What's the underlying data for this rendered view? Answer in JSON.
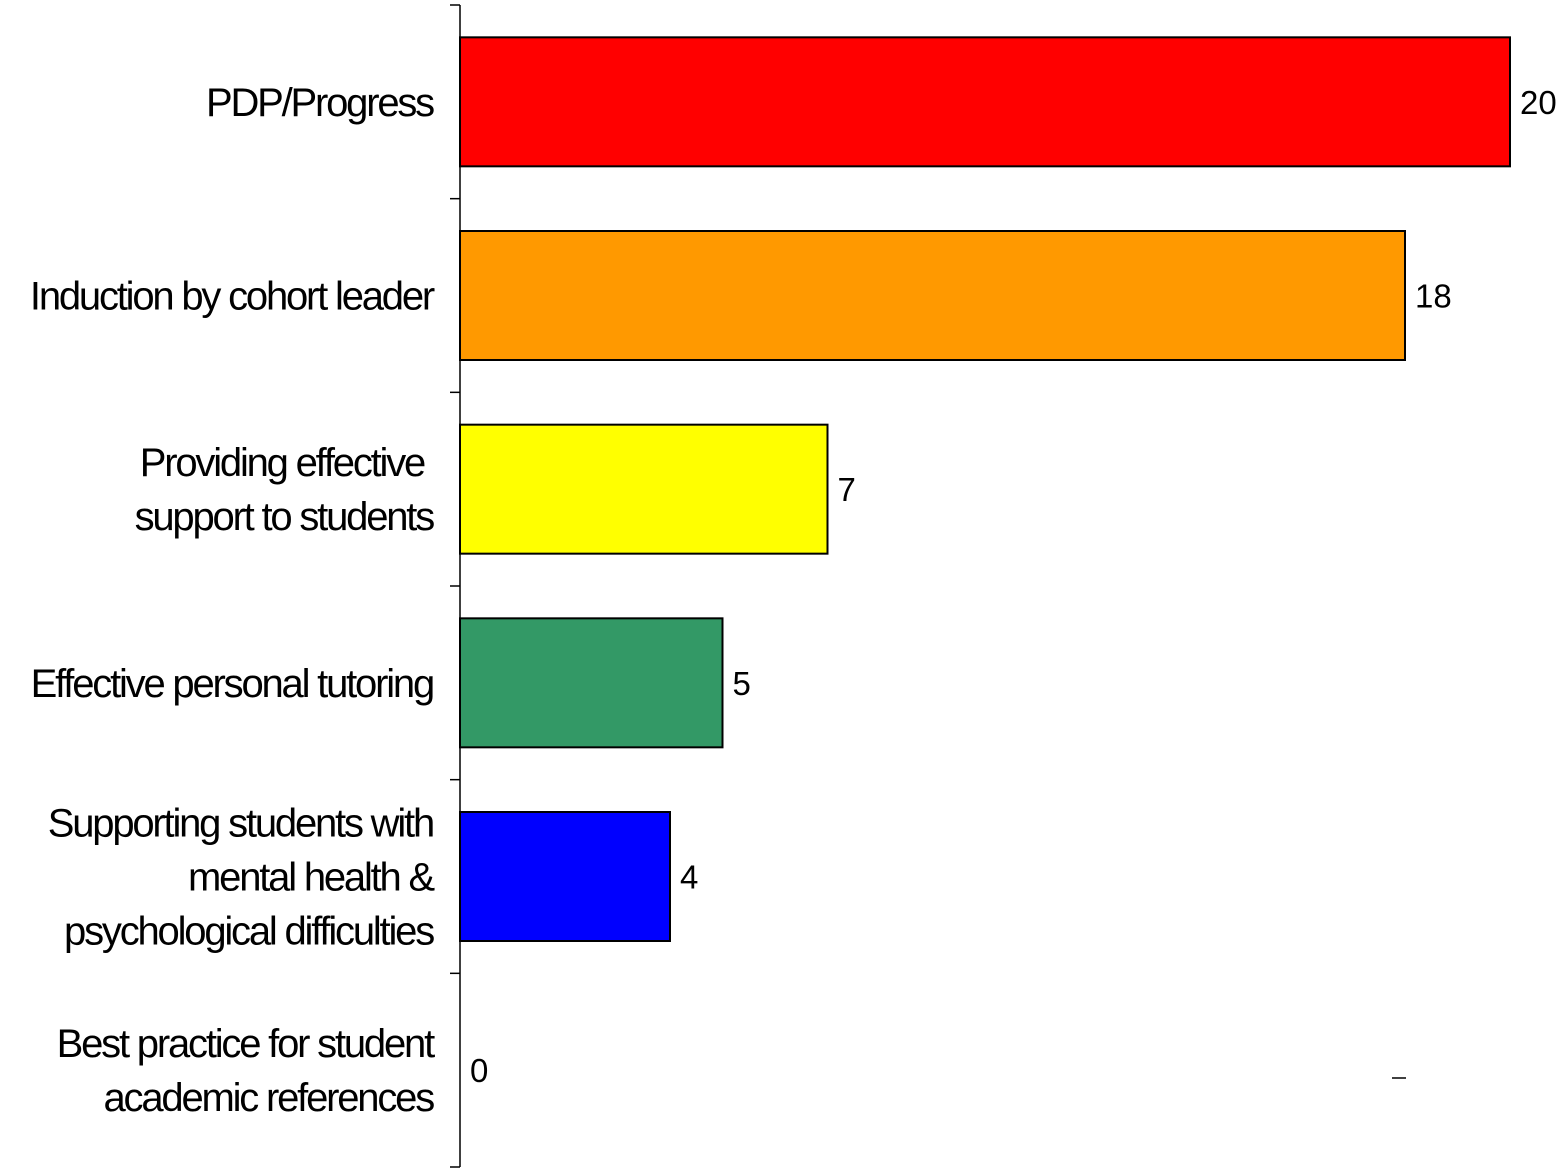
{
  "chart_data": {
    "type": "bar",
    "orientation": "horizontal",
    "categories": [
      [
        "PDP/Progress"
      ],
      [
        "Induction by cohort leader"
      ],
      [
        "Providing effective ",
        "support to students"
      ],
      [
        "Effective personal tutoring"
      ],
      [
        "Supporting students with",
        "mental health &",
        "psychological difficulties"
      ],
      [
        "Best practice for student",
        "academic references"
      ]
    ],
    "values": [
      20,
      18,
      7,
      5,
      4,
      0
    ],
    "data_labels": [
      "20",
      "18",
      "7",
      "5",
      "4",
      "0"
    ],
    "colors": [
      "#ff0000",
      "#ff9900",
      "#ffff00",
      "#339966",
      "#0000ff",
      "#ffffff"
    ],
    "title": "",
    "xlabel": "",
    "ylabel": "",
    "xlim": [
      0,
      20
    ],
    "grid": false,
    "legend": "none"
  }
}
